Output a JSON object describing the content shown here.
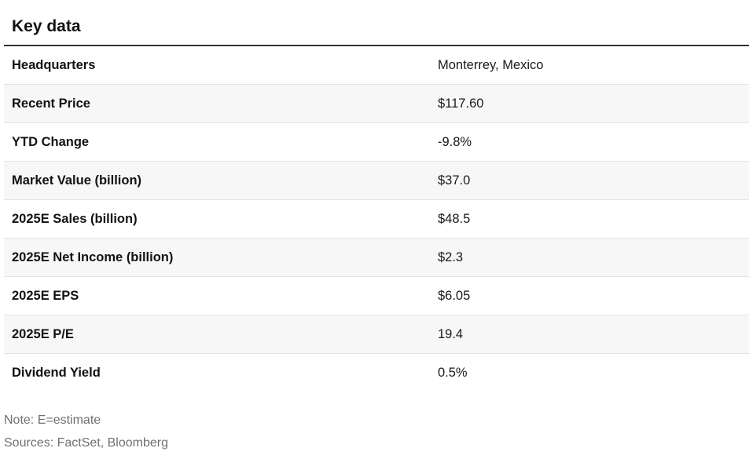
{
  "title": "Key data",
  "rows": [
    {
      "label": "Headquarters",
      "value": "Monterrey, Mexico"
    },
    {
      "label": "Recent Price",
      "value": "$117.60"
    },
    {
      "label": "YTD Change",
      "value": "-9.8%"
    },
    {
      "label": "Market Value (billion)",
      "value": "$37.0"
    },
    {
      "label": "2025E Sales (billion)",
      "value": "$48.5"
    },
    {
      "label": "2025E Net Income (billion)",
      "value": "$2.3"
    },
    {
      "label": "2025E EPS",
      "value": "$6.05"
    },
    {
      "label": "2025E P/E",
      "value": "19.4"
    },
    {
      "label": "Dividend Yield",
      "value": "0.5%"
    }
  ],
  "footnotes": {
    "note": "Note: E=estimate",
    "sources": "Sources: FactSet, Bloomberg"
  },
  "colors": {
    "row_alt_background": "#f7f7f7",
    "rule": "#333333",
    "footnote_text": "#6f6f6f"
  }
}
